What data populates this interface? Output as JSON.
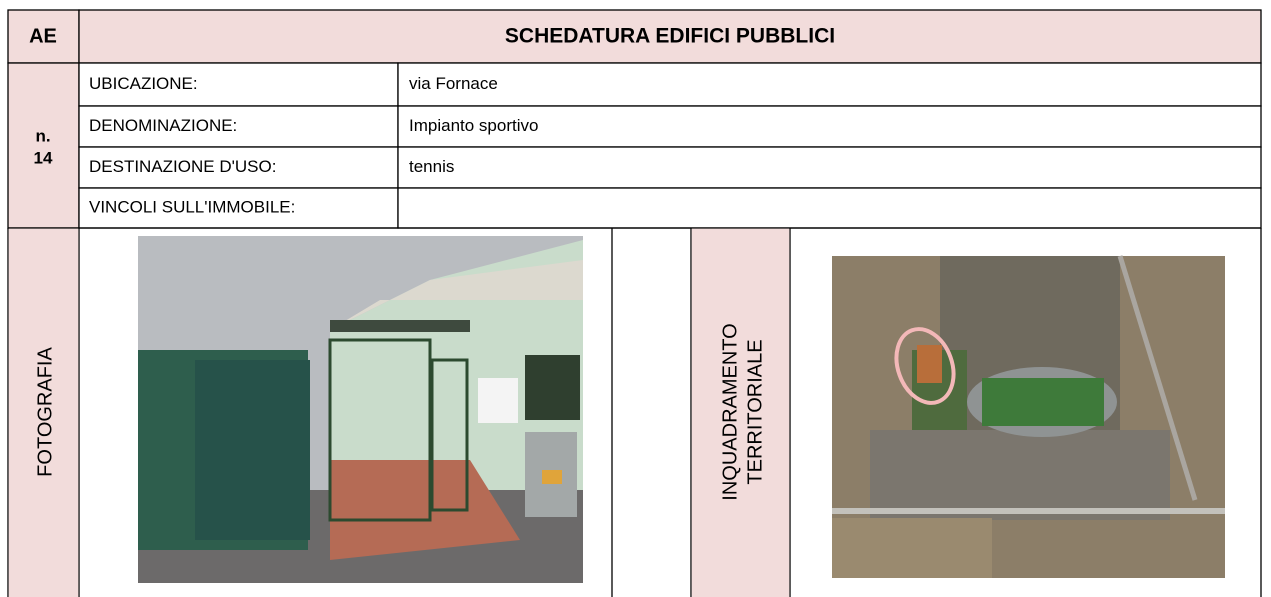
{
  "header": {
    "code": "AE",
    "title": "SCHEDATURA EDIFICI PUBBLICI"
  },
  "record": {
    "prefix": "n.",
    "number": "14"
  },
  "fields": [
    {
      "label": "UBICAZIONE:",
      "value": "via Fornace"
    },
    {
      "label": "DENOMINAZIONE:",
      "value": "Impianto sportivo"
    },
    {
      "label": "DESTINAZIONE D'USO:",
      "value": "tennis"
    },
    {
      "label": "VINCOLI SULL'IMMOBILE:"
    }
  ],
  "photo_label": "FOTOGRAFIA",
  "map_label": [
    "INQUADRAMENTO",
    "TERRITORIALE"
  ]
}
